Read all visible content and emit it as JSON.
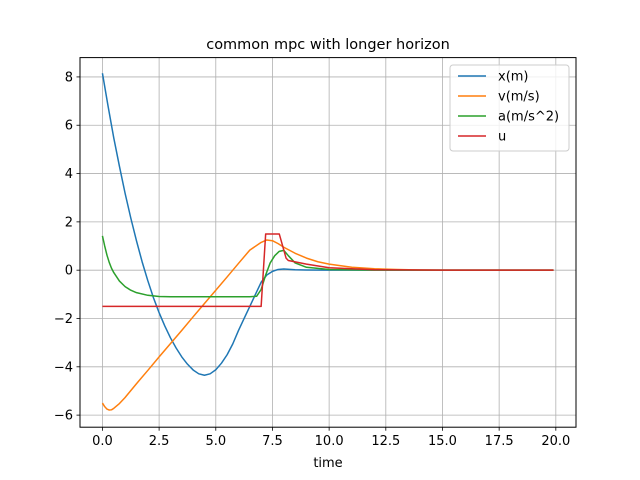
{
  "chart_data": {
    "type": "line",
    "title": "common mpc with longer horizon",
    "xlabel": "time",
    "ylabel": "",
    "xlim": [
      -0.99,
      20.89
    ],
    "ylim": [
      -6.5,
      8.8
    ],
    "xticks": [
      0.0,
      2.5,
      5.0,
      7.5,
      10.0,
      12.5,
      15.0,
      17.5,
      20.0
    ],
    "xtick_labels": [
      "0.0",
      "2.5",
      "5.0",
      "7.5",
      "10.0",
      "12.5",
      "15.0",
      "17.5",
      "20.0"
    ],
    "yticks": [
      -6,
      -4,
      -2,
      0,
      2,
      4,
      6,
      8
    ],
    "ytick_labels": [
      "−6",
      "−4",
      "−2",
      "0",
      "2",
      "4",
      "6",
      "8"
    ],
    "grid": true,
    "legend_position": "top-right",
    "series": [
      {
        "name": "x(m)",
        "color": "#1f77b4",
        "x": [
          0.0,
          0.25,
          0.5,
          0.75,
          1.0,
          1.25,
          1.5,
          1.75,
          2.0,
          2.25,
          2.5,
          2.75,
          3.0,
          3.25,
          3.5,
          3.75,
          4.0,
          4.25,
          4.5,
          4.75,
          5.0,
          5.25,
          5.5,
          5.75,
          6.0,
          6.25,
          6.5,
          6.75,
          7.0,
          7.25,
          7.5,
          7.75,
          8.0,
          8.5,
          9.0,
          10.0,
          11.0,
          12.0,
          13.0,
          15.0,
          17.5,
          19.9
        ],
        "y": [
          8.15,
          6.78,
          5.47,
          4.3,
          3.18,
          2.16,
          1.22,
          0.35,
          -0.43,
          -1.14,
          -1.76,
          -2.31,
          -2.8,
          -3.22,
          -3.59,
          -3.89,
          -4.13,
          -4.29,
          -4.35,
          -4.29,
          -4.12,
          -3.85,
          -3.5,
          -3.05,
          -2.5,
          -2.0,
          -1.5,
          -1.0,
          -0.5,
          -0.2,
          -0.05,
          0.03,
          0.05,
          0.02,
          0.01,
          0.0,
          0.0,
          0.0,
          0.0,
          0.0,
          0.0,
          0.0
        ]
      },
      {
        "name": "v(m/s)",
        "color": "#ff7f0e",
        "x": [
          0.0,
          0.1,
          0.2,
          0.3,
          0.4,
          0.5,
          0.75,
          1.0,
          1.5,
          2.0,
          2.5,
          3.0,
          3.5,
          4.0,
          4.5,
          5.0,
          5.5,
          6.0,
          6.5,
          7.0,
          7.25,
          7.5,
          7.75,
          8.0,
          8.5,
          9.0,
          9.5,
          10.0,
          11.0,
          12.0,
          13.0,
          14.0,
          15.0,
          17.5,
          19.9
        ],
        "y": [
          -5.5,
          -5.65,
          -5.75,
          -5.79,
          -5.78,
          -5.72,
          -5.52,
          -5.27,
          -4.7,
          -4.15,
          -3.59,
          -3.04,
          -2.49,
          -1.93,
          -1.38,
          -0.83,
          -0.28,
          0.28,
          0.83,
          1.15,
          1.25,
          1.22,
          1.1,
          0.95,
          0.7,
          0.5,
          0.35,
          0.25,
          0.12,
          0.06,
          0.03,
          0.01,
          0.0,
          0.0,
          0.0
        ]
      },
      {
        "name": "a(m/s^2)",
        "color": "#2ca02c",
        "x": [
          0.0,
          0.1,
          0.2,
          0.3,
          0.4,
          0.5,
          0.75,
          1.0,
          1.25,
          1.5,
          2.0,
          2.5,
          3.0,
          4.0,
          5.0,
          6.0,
          6.5,
          6.8,
          7.0,
          7.2,
          7.4,
          7.6,
          7.8,
          8.0,
          8.2,
          8.5,
          9.0,
          10.0,
          12.0,
          15.0,
          19.9
        ],
        "y": [
          1.42,
          1.0,
          0.62,
          0.32,
          0.08,
          -0.1,
          -0.45,
          -0.68,
          -0.83,
          -0.93,
          -1.04,
          -1.09,
          -1.1,
          -1.1,
          -1.1,
          -1.1,
          -1.1,
          -1.08,
          -0.8,
          -0.2,
          0.3,
          0.6,
          0.78,
          0.82,
          0.6,
          0.3,
          0.12,
          0.03,
          0.0,
          0.0,
          0.0
        ]
      },
      {
        "name": "u",
        "color": "#d62728",
        "x": [
          0.0,
          6.9,
          7.0,
          7.2,
          7.25,
          7.3,
          7.75,
          7.8,
          8.1,
          8.2,
          9.0,
          10.0,
          12.0,
          15.0,
          19.9
        ],
        "y": [
          -1.5,
          -1.5,
          -1.5,
          1.5,
          1.5,
          1.5,
          1.5,
          1.5,
          0.5,
          0.4,
          0.25,
          0.1,
          0.02,
          0.0,
          0.0
        ]
      }
    ]
  }
}
